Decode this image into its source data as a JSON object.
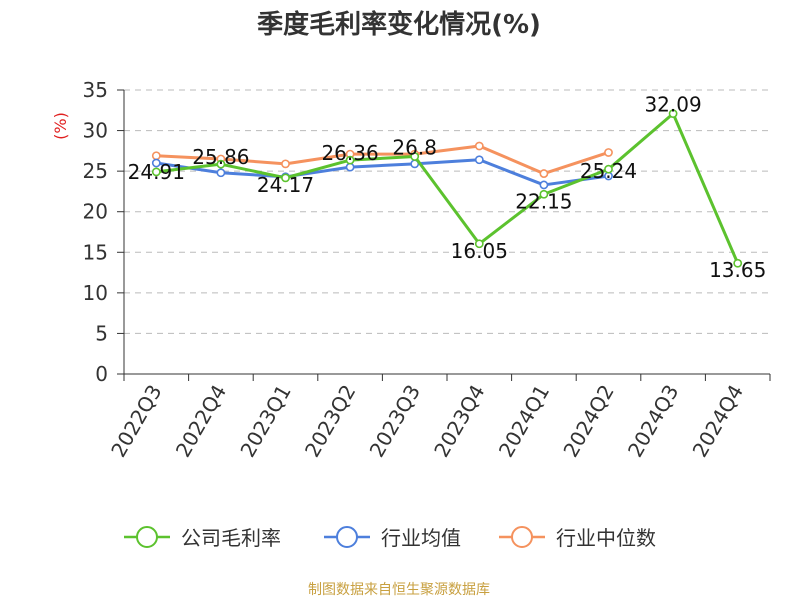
{
  "chart_data": {
    "type": "line",
    "title": "季度毛利率变化情况(%)",
    "ylabel": "(%)",
    "xlabel": "",
    "categories": [
      "2022Q3",
      "2022Q4",
      "2023Q1",
      "2023Q2",
      "2023Q3",
      "2023Q4",
      "2024Q1",
      "2024Q2",
      "2024Q3",
      "2024Q4"
    ],
    "ylim": [
      0,
      35
    ],
    "yticks": [
      0,
      5,
      10,
      15,
      20,
      25,
      30,
      35
    ],
    "grid": true,
    "legend_position": "bottom",
    "series": [
      {
        "name": "公司毛利率",
        "color": "#5cc22e",
        "values": [
          24.91,
          25.86,
          24.17,
          26.36,
          26.8,
          16.05,
          22.15,
          25.24,
          32.09,
          13.65
        ],
        "labels": [
          "24.91",
          "25.86",
          "24.17",
          "26.36",
          "26.8",
          "16.05",
          "22.15",
          "25.24",
          "32.09",
          "13.65"
        ]
      },
      {
        "name": "行业均值",
        "color": "#4d7fdc",
        "values": [
          26.0,
          24.8,
          24.3,
          25.5,
          25.9,
          26.4,
          23.3,
          24.4,
          null,
          null
        ]
      },
      {
        "name": "行业中位数",
        "color": "#f5925e",
        "values": [
          26.9,
          26.5,
          25.9,
          27.1,
          27.1,
          28.1,
          24.7,
          27.3,
          null,
          null
        ]
      }
    ],
    "colors": {
      "text": "#333333",
      "axis": "#333333",
      "grid": "#bbbbbb",
      "unit": "#e02020",
      "footer": "#c8a040"
    }
  },
  "footer": "制图数据来自恒生聚源数据库"
}
